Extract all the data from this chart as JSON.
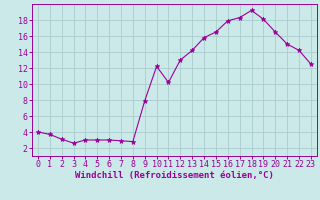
{
  "hours": [
    0,
    1,
    2,
    3,
    4,
    5,
    6,
    7,
    8,
    9,
    10,
    11,
    12,
    13,
    14,
    15,
    16,
    17,
    18,
    19,
    20,
    21,
    22,
    23
  ],
  "values": [
    4.0,
    3.7,
    3.1,
    2.6,
    3.0,
    3.0,
    3.0,
    2.9,
    2.8,
    7.9,
    12.2,
    10.2,
    13.0,
    14.2,
    15.8,
    16.5,
    17.9,
    18.3,
    19.2,
    18.1,
    16.5,
    15.0,
    14.2,
    12.5
  ],
  "line_color": "#990099",
  "marker": "*",
  "marker_size": 3.5,
  "bg_color": "#cce9e9",
  "grid_color": "#aacccc",
  "xlabel": "Windchill (Refroidissement éolien,°C)",
  "xlim": [
    -0.5,
    23.5
  ],
  "ylim": [
    1,
    20
  ],
  "yticks": [
    2,
    4,
    6,
    8,
    10,
    12,
    14,
    16,
    18
  ],
  "xticks": [
    0,
    1,
    2,
    3,
    4,
    5,
    6,
    7,
    8,
    9,
    10,
    11,
    12,
    13,
    14,
    15,
    16,
    17,
    18,
    19,
    20,
    21,
    22,
    23
  ],
  "label_fontsize": 6.5,
  "tick_fontsize": 6.0
}
